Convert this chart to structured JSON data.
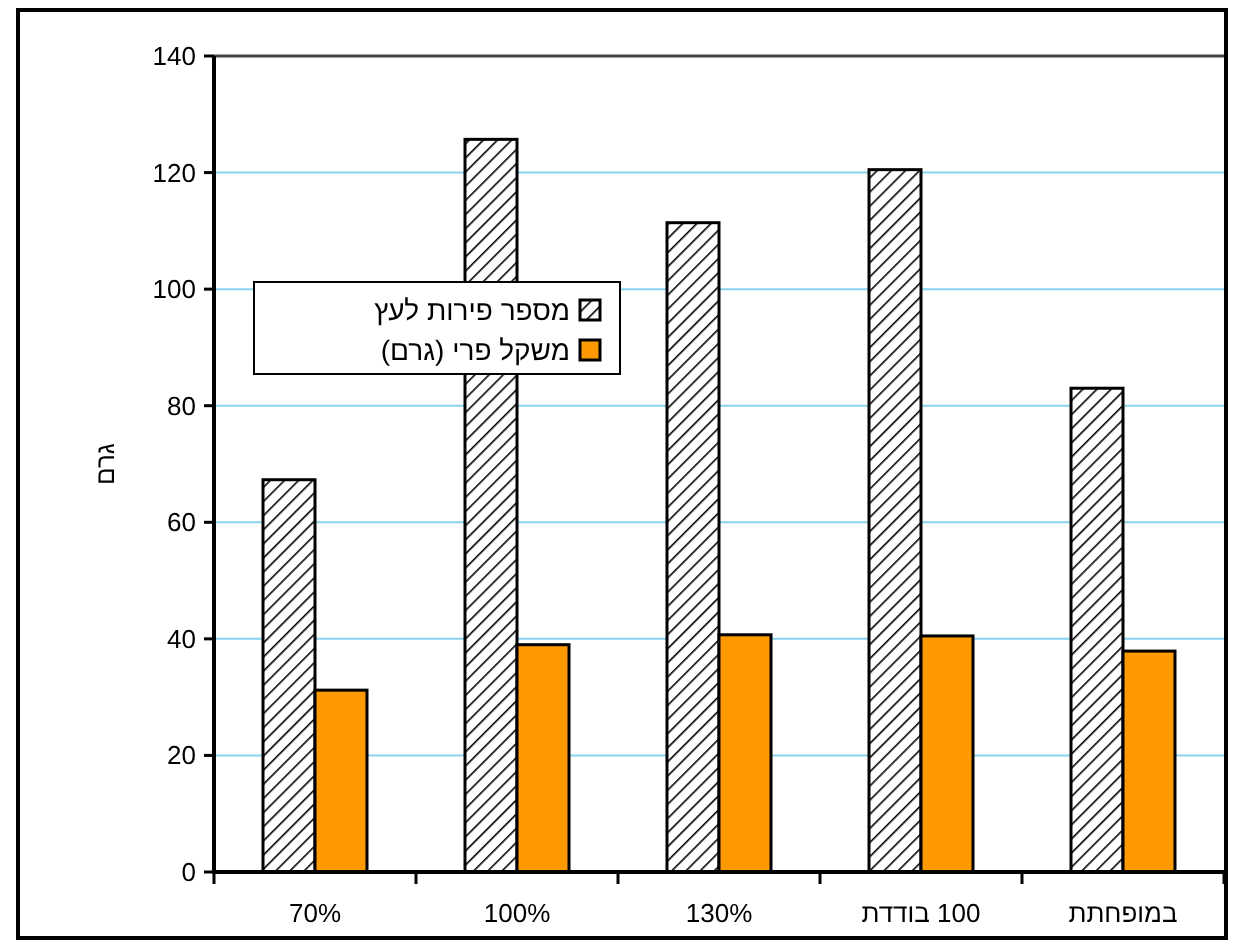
{
  "chart_data": {
    "type": "bar",
    "ylabel": "גרם",
    "categories": [
      "70%",
      "100%",
      "130%",
      "100 בודדת",
      "במופחתת"
    ],
    "series": [
      {
        "name": "מספר פירות לעץ",
        "color": "#000000",
        "values": [
          67.3,
          125.7,
          111.4,
          120.5,
          83
        ]
      },
      {
        "name": "משקל פרי (גרם)",
        "color": "#ff9900",
        "values": [
          31.2,
          39.0,
          40.7,
          40.5,
          37.9
        ]
      }
    ],
    "ylim": [
      0,
      140
    ],
    "yticks": [
      0,
      20,
      40,
      60,
      80,
      100,
      120,
      140
    ],
    "grid": "y",
    "legend": "left"
  }
}
